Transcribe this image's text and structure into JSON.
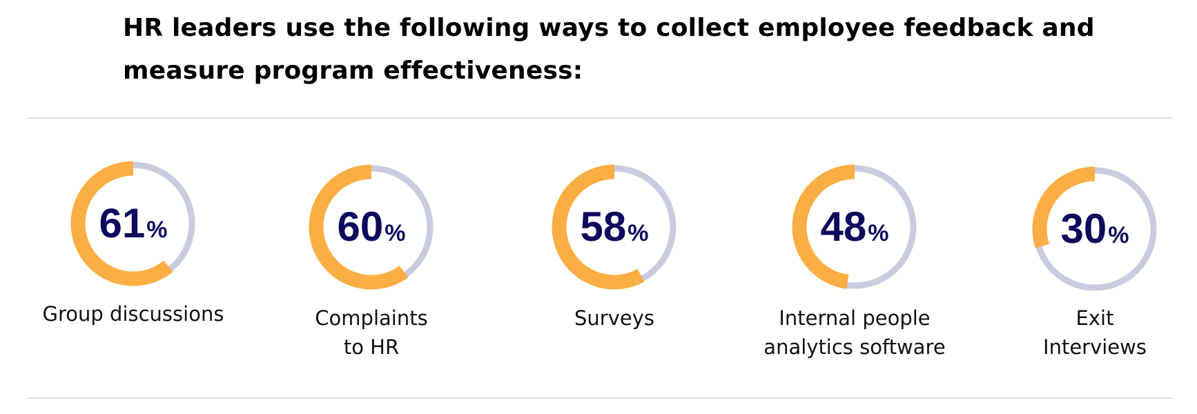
{
  "title": "HR leaders use the following ways to collect employee feedback and measure program effectiveness:",
  "colors": {
    "filled": "#fbae44",
    "track": "#cbcbe0",
    "value_text": "#0d0a5c"
  },
  "chart_data": {
    "type": "donut",
    "title": "HR leaders use the following ways to collect employee feedback and measure program effectiveness:",
    "unit": "%",
    "max": 100,
    "items": [
      {
        "label_lines": [
          "Group discussions"
        ],
        "value": 61
      },
      {
        "label_lines": [
          "Complaints",
          "to HR"
        ],
        "value": 60
      },
      {
        "label_lines": [
          "Surveys"
        ],
        "value": 58
      },
      {
        "label_lines": [
          "Internal people",
          "analytics software"
        ],
        "value": 48
      },
      {
        "label_lines": [
          "Exit",
          "Interviews"
        ],
        "value": 30
      }
    ]
  }
}
